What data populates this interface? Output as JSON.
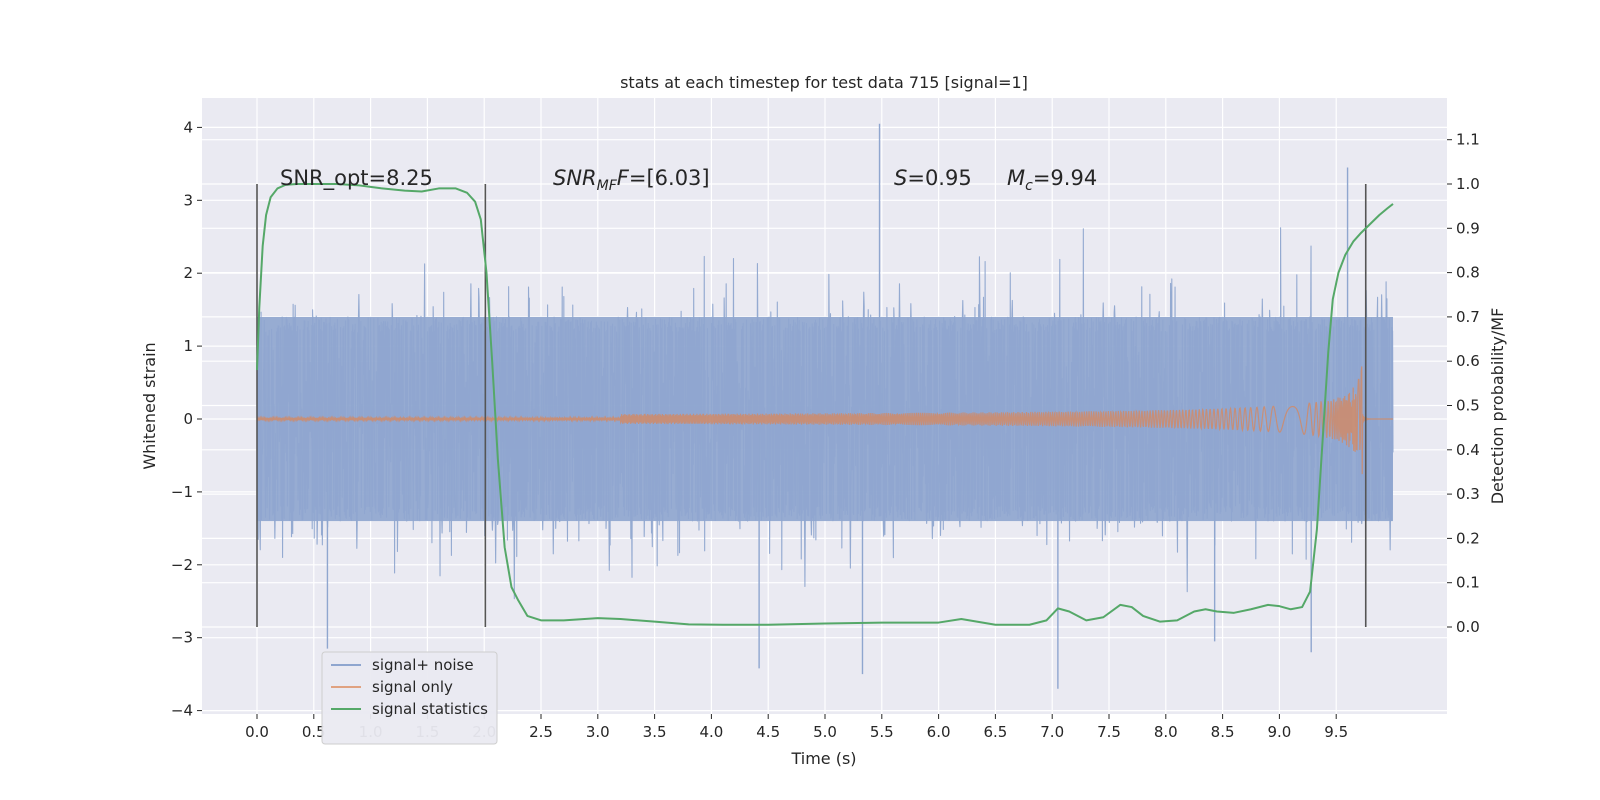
{
  "chart_data": {
    "type": "line",
    "title": "stats at each timestep for test data 715 [signal=1]",
    "xlabel": "Time (s)",
    "ylabel_left": "Whitened strain",
    "ylabel_right": "Detection probability/MF",
    "xlim": [
      -0.5,
      10.5
    ],
    "ylim_left": [
      -4.1,
      4.4
    ],
    "ylim_right": [
      -0.2,
      1.2
    ],
    "x_ticks": [
      "0.0",
      "0.5",
      "1.0",
      "1.5",
      "2.0",
      "2.5",
      "3.0",
      "3.5",
      "4.0",
      "4.5",
      "5.0",
      "5.5",
      "6.0",
      "6.5",
      "7.0",
      "7.5",
      "8.0",
      "8.5",
      "9.0",
      "9.5"
    ],
    "y_left_ticks": [
      "−4",
      "−3",
      "−2",
      "−1",
      "0",
      "1",
      "2",
      "3",
      "4"
    ],
    "y_right_ticks": [
      "0.0",
      "0.1",
      "0.2",
      "0.3",
      "0.4",
      "0.5",
      "0.6",
      "0.7",
      "0.8",
      "0.9",
      "1.0",
      "1.1"
    ],
    "grid": true,
    "legend_position": "lower-left",
    "annotations": [
      {
        "plain": "SNR_opt=8.25"
      },
      {
        "italic": "SNR",
        "sub": "MF",
        "italic2": "F",
        "rest": "=[6.03]"
      },
      {
        "italic": "S",
        "rest": "=0.95"
      },
      {
        "italic": "M",
        "sub": "c",
        "rest": "=9.94"
      }
    ],
    "vertical_lines_x": [
      0.0,
      2.01,
      9.76
    ],
    "series": [
      {
        "name": "signal+ noise",
        "color": "#8fa6cf",
        "t_range": [
          0.0,
          10.0
        ],
        "core_band": [
          -1.4,
          1.4
        ],
        "typical_peaks": [
          2.0,
          -2.3
        ],
        "extreme_values": [
          [
            5.48,
            4.05
          ],
          [
            0.62,
            -3.15
          ],
          [
            4.42,
            -3.42
          ],
          [
            5.33,
            -3.5
          ],
          [
            7.05,
            -3.7
          ],
          [
            9.28,
            -3.2
          ],
          [
            8.43,
            -3.05
          ],
          [
            9.6,
            3.45
          ]
        ]
      },
      {
        "name": "signal only",
        "color": "#dd8452",
        "chirp_start": 5.2,
        "chirp_merger": 9.73,
        "peak_amplitude": 0.92
      },
      {
        "name": "signal statistics",
        "color": "#55a868",
        "axis": "right",
        "x": [
          0.0,
          0.02,
          0.05,
          0.08,
          0.12,
          0.18,
          0.25,
          0.35,
          0.5,
          0.7,
          0.9,
          1.1,
          1.3,
          1.45,
          1.6,
          1.75,
          1.85,
          1.92,
          1.97,
          2.02,
          2.07,
          2.12,
          2.18,
          2.24,
          2.3,
          2.38,
          2.5,
          2.7,
          3.0,
          3.2,
          3.5,
          3.8,
          4.1,
          4.5,
          5.0,
          5.5,
          6.0,
          6.2,
          6.5,
          6.8,
          6.95,
          7.05,
          7.15,
          7.3,
          7.45,
          7.6,
          7.7,
          7.8,
          7.95,
          8.1,
          8.25,
          8.35,
          8.45,
          8.6,
          8.75,
          8.9,
          9.0,
          9.1,
          9.2,
          9.27,
          9.33,
          9.38,
          9.43,
          9.47,
          9.52,
          9.58,
          9.65,
          9.72,
          9.8,
          9.88,
          9.95,
          10.0
        ],
        "values": [
          0.58,
          0.72,
          0.86,
          0.93,
          0.97,
          0.99,
          0.998,
          1.0,
          1.0,
          1.0,
          0.997,
          0.99,
          0.985,
          0.983,
          0.99,
          0.99,
          0.98,
          0.96,
          0.92,
          0.8,
          0.6,
          0.38,
          0.18,
          0.09,
          0.06,
          0.025,
          0.015,
          0.015,
          0.02,
          0.018,
          0.012,
          0.006,
          0.005,
          0.005,
          0.008,
          0.01,
          0.01,
          0.018,
          0.005,
          0.005,
          0.015,
          0.042,
          0.035,
          0.015,
          0.022,
          0.05,
          0.045,
          0.025,
          0.012,
          0.015,
          0.035,
          0.04,
          0.035,
          0.032,
          0.04,
          0.05,
          0.047,
          0.04,
          0.045,
          0.08,
          0.22,
          0.42,
          0.62,
          0.74,
          0.8,
          0.84,
          0.87,
          0.89,
          0.91,
          0.93,
          0.945,
          0.955
        ]
      }
    ]
  }
}
